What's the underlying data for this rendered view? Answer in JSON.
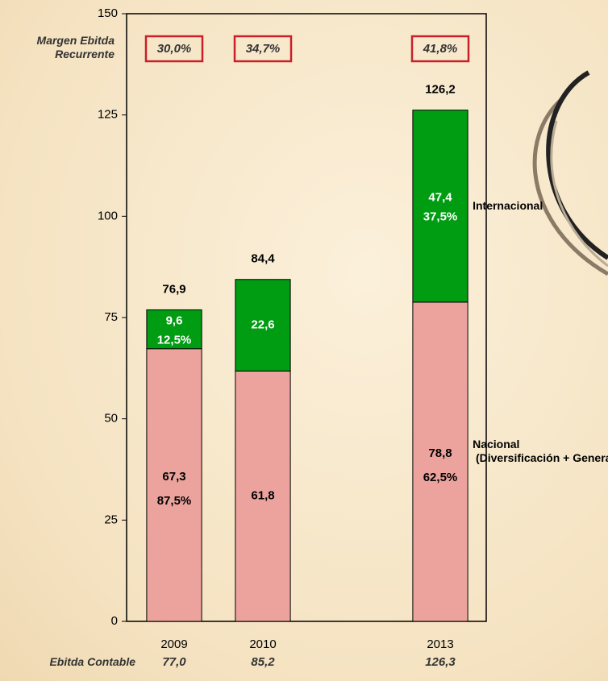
{
  "chart_data": {
    "type": "stacked-bar",
    "categories": [
      "2009",
      "2010",
      null,
      "2013"
    ],
    "series": [
      {
        "name": "Nacional\n (Diversificación + Generalismo)",
        "color": "#eca39e",
        "label_color": "#000000",
        "values": [
          67.3,
          61.8,
          null,
          78.8
        ],
        "value_labels": [
          "67,3",
          "61,8",
          null,
          "78,8"
        ],
        "share_labels": [
          "87,5%",
          null,
          null,
          "62,5%"
        ]
      },
      {
        "name": "Internacional",
        "color": "#009c12",
        "label_color": "#ffffff",
        "values": [
          9.6,
          22.6,
          null,
          47.4
        ],
        "value_labels": [
          "9,6",
          "22,6",
          null,
          "47,4"
        ],
        "share_labels": [
          "12,5%",
          null,
          null,
          "37,5%"
        ]
      }
    ],
    "totals": {
      "values": [
        76.9,
        84.4,
        null,
        126.2
      ],
      "value_labels": [
        "76,9",
        "84,4",
        null,
        "126,2"
      ]
    },
    "top_row": {
      "title": "Margen Ebitda\nRecurrente",
      "labels": [
        "30,0%",
        "34,7%",
        null,
        "41,8%"
      ]
    },
    "bottom_row": {
      "title": "Ebitda Contable",
      "labels": [
        "77,0",
        "85,2",
        null,
        "126,3"
      ]
    },
    "ylim": [
      0,
      150
    ],
    "yticks": [
      0,
      25,
      50,
      75,
      100,
      125,
      150
    ]
  }
}
